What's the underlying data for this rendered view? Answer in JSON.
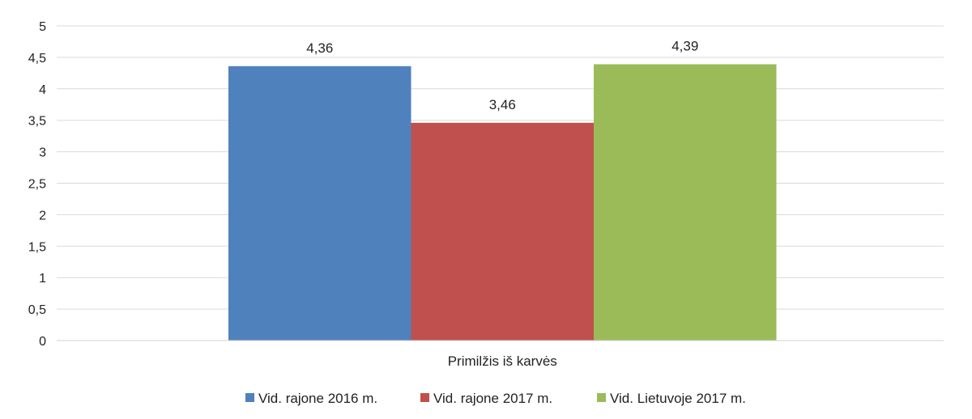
{
  "chart_data": {
    "type": "bar",
    "categories": [
      "Primilžis iš karvės"
    ],
    "series": [
      {
        "name": "Vid. rajone 2016 m.",
        "values": [
          4.36
        ],
        "label": "4,36",
        "color": "#4F81BD"
      },
      {
        "name": "Vid. rajone 2017 m.",
        "values": [
          3.46
        ],
        "label": "3,46",
        "color": "#C0504D"
      },
      {
        "name": "Vid. Lietuvoje 2017 m.",
        "values": [
          4.39
        ],
        "label": "4,39",
        "color": "#9BBB59"
      }
    ],
    "y_ticks": [
      "0",
      "0,5",
      "1",
      "1,5",
      "2",
      "2,5",
      "3",
      "3,5",
      "4",
      "4,5",
      "5"
    ],
    "ylim": [
      0,
      5
    ],
    "grid": true,
    "legend_position": "bottom",
    "title": "",
    "xlabel": "",
    "ylabel": ""
  }
}
